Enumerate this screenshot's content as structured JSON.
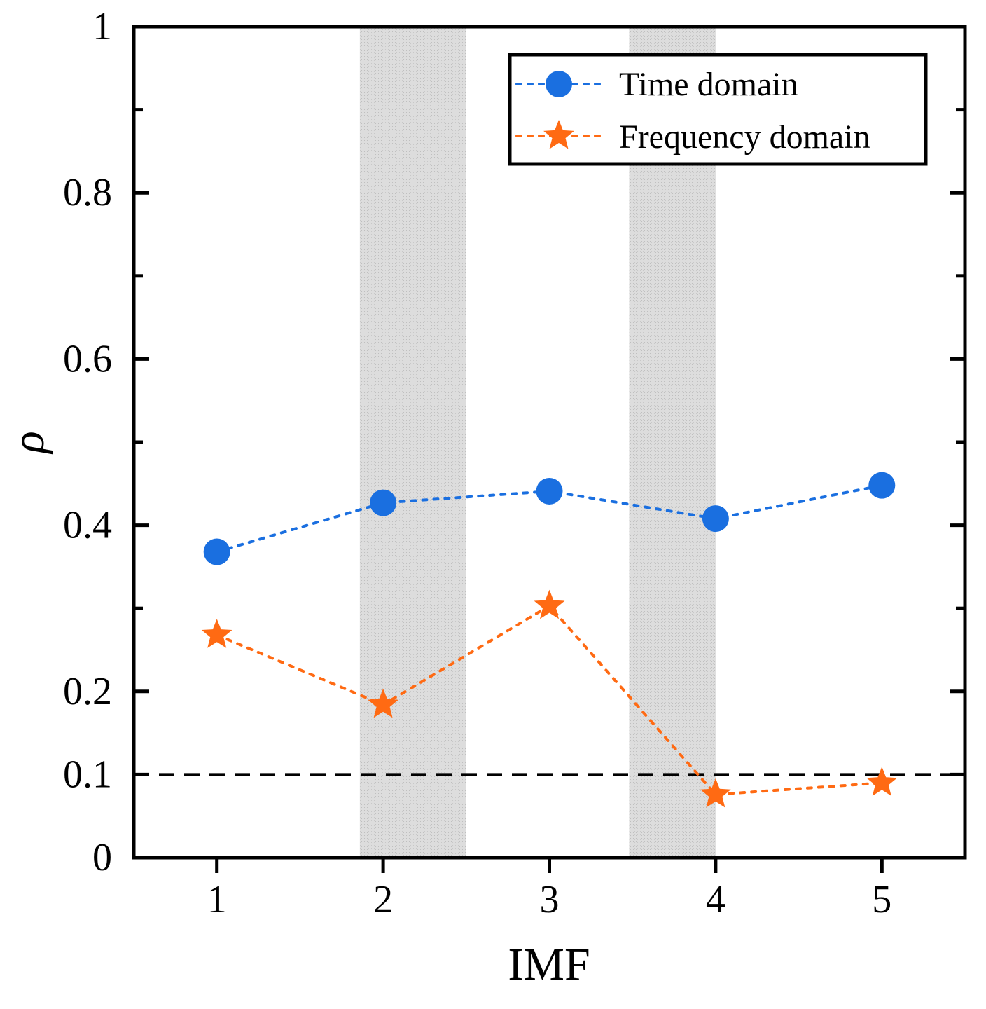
{
  "chart_data": {
    "type": "line",
    "title": "",
    "xlabel": "IMF",
    "ylabel": "ρ",
    "x": [
      1,
      2,
      3,
      4,
      5
    ],
    "xticks": [
      "1",
      "2",
      "3",
      "4",
      "5"
    ],
    "xlim": [
      0.5,
      5.5
    ],
    "ylim": [
      0,
      1
    ],
    "yticks": [
      0,
      0.1,
      0.2,
      0.4,
      0.6,
      0.8,
      1
    ],
    "ytick_labels": [
      "0",
      "0.1",
      "0.2",
      "0.4",
      "0.6",
      "0.8",
      "1"
    ],
    "yminor": [
      0.3,
      0.5,
      0.7,
      0.9
    ],
    "series": [
      {
        "name": "Time domain",
        "marker": "circle",
        "color": "#1A6FE0",
        "linestyle": "dotted",
        "values": [
          0.368,
          0.427,
          0.441,
          0.408,
          0.448
        ]
      },
      {
        "name": "Frequency domain",
        "marker": "star",
        "color": "#FF6A13",
        "linestyle": "dotted",
        "values": [
          0.268,
          0.184,
          0.303,
          0.076,
          0.09
        ]
      }
    ],
    "reference_line": {
      "y": 0.1,
      "style": "dashed",
      "color": "#000000"
    },
    "shaded_regions": [
      {
        "x": [
          1.86,
          2.5
        ]
      },
      {
        "x": [
          3.48,
          4.0
        ]
      }
    ],
    "shade_color": "#D9D9D9",
    "legend_position": "top-right",
    "grid": false
  }
}
